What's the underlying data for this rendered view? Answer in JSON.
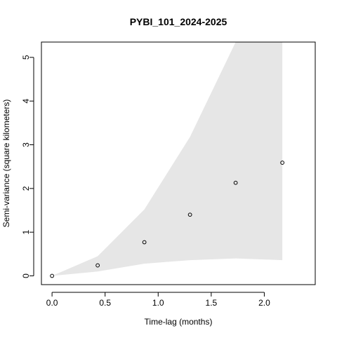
{
  "chart_data": {
    "type": "scatter",
    "title": "PYBI_101_2024-2025",
    "xlabel": "Time-lag (months)",
    "ylabel": "Semi-variance (square kilometers)",
    "xlim": [
      -0.1,
      2.48
    ],
    "ylim": [
      -0.2,
      5.35
    ],
    "xticks": [
      0.0,
      0.5,
      1.0,
      1.5,
      2.0
    ],
    "xtick_labels": [
      "0.0",
      "0.5",
      "1.0",
      "1.5",
      "2.0"
    ],
    "yticks": [
      0,
      1,
      2,
      3,
      4,
      5
    ],
    "ytick_labels": [
      "0",
      "1",
      "2",
      "3",
      "4",
      "5"
    ],
    "grid": false,
    "points": [
      {
        "x": 0.0,
        "y": 0.0
      },
      {
        "x": 0.43,
        "y": 0.24
      },
      {
        "x": 0.87,
        "y": 0.77
      },
      {
        "x": 1.3,
        "y": 1.4
      },
      {
        "x": 1.73,
        "y": 2.13
      },
      {
        "x": 2.17,
        "y": 2.59
      }
    ],
    "band": {
      "x": [
        0.0,
        0.43,
        0.87,
        1.3,
        1.73,
        2.17
      ],
      "upper": [
        0.0,
        0.45,
        1.52,
        3.18,
        5.35,
        5.35
      ],
      "lower": [
        0.0,
        0.1,
        0.28,
        0.36,
        0.4,
        0.36
      ]
    },
    "band_color": "#e6e6e6",
    "point_color": "#000000"
  }
}
